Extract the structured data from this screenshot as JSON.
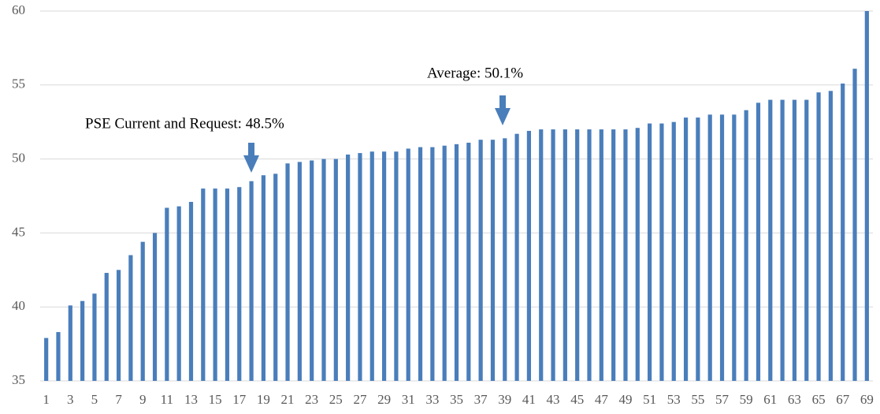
{
  "chart_data": {
    "type": "bar",
    "annotations": [
      "PSE Current and Request: 48.5%",
      "Average: 50.1%"
    ],
    "categories": [
      "1",
      null,
      "3",
      null,
      "5",
      null,
      "7",
      null,
      "9",
      null,
      "11",
      null,
      "13",
      null,
      "15",
      null,
      "17",
      null,
      "19",
      null,
      "21",
      null,
      "23",
      null,
      "25",
      null,
      "27",
      null,
      "29",
      null,
      "31",
      null,
      "33",
      null,
      "35",
      null,
      "37",
      null,
      "39",
      null,
      "41",
      null,
      "43",
      null,
      "45",
      null,
      "47",
      null,
      "49",
      null,
      "51",
      null,
      "53",
      null,
      "55",
      null,
      "57",
      null,
      "59",
      null,
      "61",
      null,
      "63",
      null,
      "65",
      null,
      "67",
      null,
      "69"
    ],
    "values": [
      37.9,
      38.3,
      40.1,
      40.4,
      40.9,
      42.3,
      42.5,
      43.5,
      44.4,
      45.0,
      46.7,
      46.8,
      47.1,
      48.0,
      48.0,
      48.0,
      48.1,
      48.5,
      48.9,
      49.0,
      49.7,
      49.8,
      49.9,
      50.0,
      50.0,
      50.3,
      50.4,
      50.5,
      50.5,
      50.5,
      50.7,
      50.8,
      50.8,
      50.9,
      51.0,
      51.1,
      51.3,
      51.3,
      51.4,
      51.7,
      51.9,
      52.0,
      52.0,
      52.0,
      52.0,
      52.0,
      52.0,
      52.0,
      52.0,
      52.1,
      52.4,
      52.4,
      52.5,
      52.8,
      52.8,
      53.0,
      53.0,
      53.0,
      53.3,
      53.8,
      54.0,
      54.0,
      54.0,
      54.0,
      54.5,
      54.6,
      55.1,
      56.1,
      60.0
    ],
    "color": "#4a7ebb",
    "ylim": [
      35,
      60
    ],
    "yticks": [
      35,
      40,
      45,
      50,
      55,
      60
    ],
    "grid": true
  }
}
